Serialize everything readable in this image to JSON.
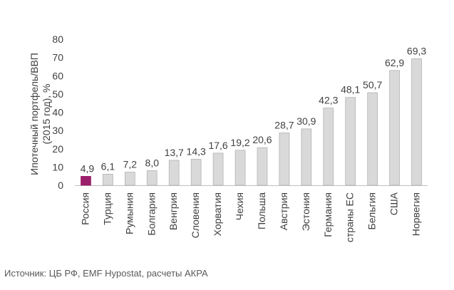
{
  "chart_data": {
    "type": "bar",
    "categories": [
      "Россия",
      "Турция",
      "Румыния",
      "Болгария",
      "Венгрия",
      "Словения",
      "Хорватия",
      "Чехия",
      "Польша",
      "Австрия",
      "Эстония",
      "Германия",
      "страны ЕС",
      "Бельгия",
      "США",
      "Норвегия"
    ],
    "values": [
      4.9,
      6.1,
      7.2,
      8.0,
      13.7,
      14.3,
      17.6,
      19.2,
      20.6,
      28.7,
      30.9,
      42.3,
      48.1,
      50.7,
      62.9,
      69.3
    ],
    "value_labels": [
      "4,9",
      "6,1",
      "7,2",
      "8,0",
      "13,7",
      "14,3",
      "17,6",
      "19,2",
      "20,6",
      "28,7",
      "30,9",
      "42,3",
      "48,1",
      "50,7",
      "62,9",
      "69,3"
    ],
    "ylabel": "Ипотечный портфель/ВВП (2015 год), %",
    "ylim": [
      0,
      80
    ],
    "yticks": [
      0,
      10,
      20,
      30,
      40,
      50,
      60,
      70,
      80
    ],
    "grid": false,
    "colors": {
      "highlight": "#9b1f6a",
      "bar": "#d9d9d9",
      "bar_stroke": "#b3b3b3",
      "axis": "#bfbfbf",
      "text": "#404040"
    },
    "highlight_index": 0
  },
  "source": "Источник: ЦБ РФ, EMF Hypostat, расчеты АКРА"
}
